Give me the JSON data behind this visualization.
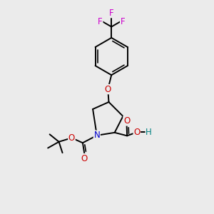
{
  "background_color": "#ebebeb",
  "BLACK": "#000000",
  "BLUE": "#0000cd",
  "RED": "#cc0000",
  "MAGENTA": "#cc00cc",
  "TEAL": "#008080",
  "lw": 1.4,
  "fs": 8.5,
  "xlim": [
    0,
    10
  ],
  "ylim": [
    0,
    12
  ]
}
